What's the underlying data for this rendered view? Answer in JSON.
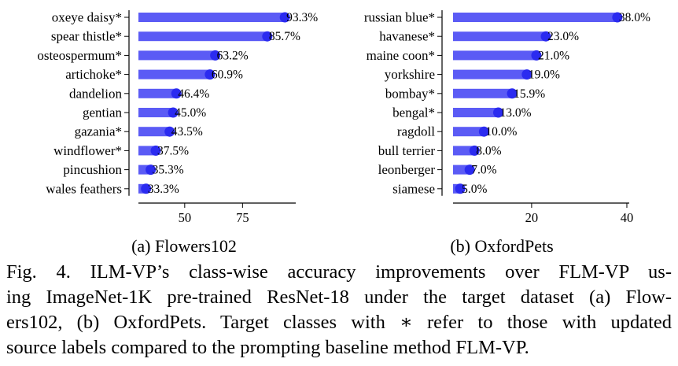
{
  "chart_data": [
    {
      "type": "bar",
      "title": "(a) Flowers102",
      "categories": [
        "oxeye daisy*",
        "spear thistle*",
        "osteospermum*",
        "artichoke*",
        "dandelion",
        "gentian",
        "gazania*",
        "windflower*",
        "pincushion",
        "wales feathers"
      ],
      "values": [
        93.3,
        85.7,
        63.2,
        60.9,
        46.4,
        45.0,
        43.5,
        37.5,
        35.3,
        33.3
      ],
      "value_labels": [
        "93.3%",
        "85.7%",
        "63.2%",
        "60.9%",
        "46.4%",
        "45.0%",
        "43.5%",
        "37.5%",
        "35.3%",
        "33.3%"
      ],
      "xlim": [
        30,
        98
      ],
      "xticks": [
        50,
        75
      ],
      "xlabel": "",
      "ylabel": "",
      "grid": false,
      "color": "#5b5bf5",
      "marker_color": "#2b2bf0"
    },
    {
      "type": "bar",
      "title": "(b) OxfordPets",
      "categories": [
        "russian blue*",
        "havanese*",
        "maine coon*",
        "yorkshire",
        "bombay*",
        "bengal*",
        "ragdoll",
        "bull terrier",
        "leonberger",
        "siamese"
      ],
      "values": [
        38.0,
        23.0,
        21.0,
        19.0,
        15.9,
        13.0,
        10.0,
        8.0,
        7.0,
        5.0
      ],
      "value_labels": [
        "38.0%",
        "23.0%",
        "21.0%",
        "19.0%",
        "15.9%",
        "13.0%",
        "10.0%",
        "8.0%",
        "7.0%",
        "5.0%"
      ],
      "xlim": [
        3.5,
        40.5
      ],
      "xticks": [
        20,
        40
      ],
      "xlabel": "",
      "ylabel": "",
      "grid": false,
      "color": "#5b5bf5",
      "marker_color": "#2b2bf0"
    }
  ],
  "caption": {
    "lines": [
      "Fig. 4.  ILM-VP’s class-wise accuracy improvements over FLM-VP us-",
      "ing ImageNet-1K pre-trained ResNet-18 under the target dataset (a) Flow-",
      "ers102, (b) OxfordPets. Target classes with ∗ refer to those with updated",
      "source labels compared to the prompting baseline method FLM-VP."
    ]
  }
}
